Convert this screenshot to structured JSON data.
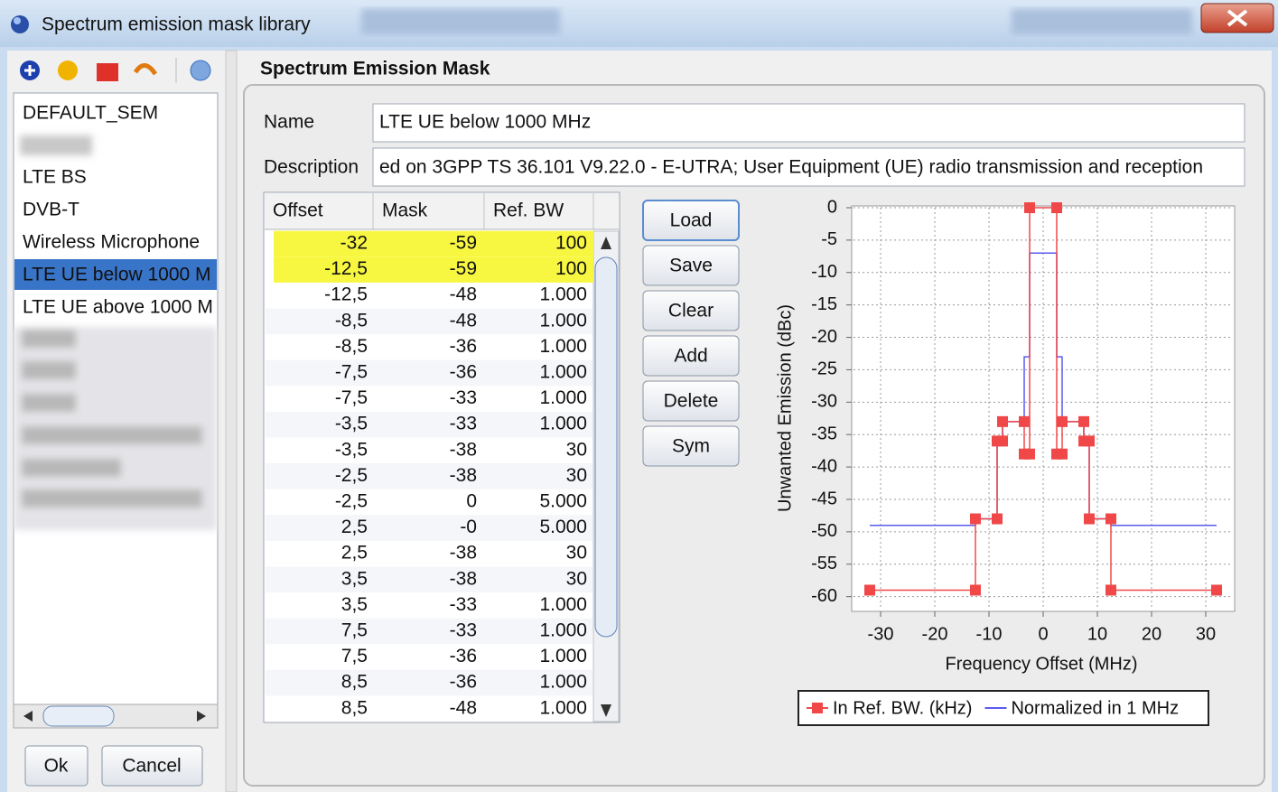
{
  "window": {
    "title": "Spectrum emission mask library"
  },
  "library": {
    "items": [
      "DEFAULT_SEM",
      "LTE BS",
      "DVB-T",
      "Wireless Microphone",
      "LTE UE below 1000 M",
      "LTE UE above 1000 M"
    ],
    "selected": 4
  },
  "buttons": {
    "ok": "Ok",
    "cancel": "Cancel"
  },
  "panel": {
    "title": "Spectrum Emission Mask",
    "name_label": "Name",
    "name": "LTE UE below 1000 MHz",
    "description_label": "Description",
    "description": "ed on 3GPP TS 36.101 V9.22.0 - E-UTRA; User Equipment (UE) radio transmission and reception"
  },
  "table": {
    "columns": [
      "Offset",
      "Mask",
      "Ref. BW"
    ],
    "rows": [
      [
        "-32",
        "-59",
        "100"
      ],
      [
        "-12,5",
        "-59",
        "100"
      ],
      [
        "-12,5",
        "-48",
        "1.000"
      ],
      [
        "-8,5",
        "-48",
        "1.000"
      ],
      [
        "-8,5",
        "-36",
        "1.000"
      ],
      [
        "-7,5",
        "-36",
        "1.000"
      ],
      [
        "-7,5",
        "-33",
        "1.000"
      ],
      [
        "-3,5",
        "-33",
        "1.000"
      ],
      [
        "-3,5",
        "-38",
        "30"
      ],
      [
        "-2,5",
        "-38",
        "30"
      ],
      [
        "-2,5",
        "0",
        "5.000"
      ],
      [
        "2,5",
        "-0",
        "5.000"
      ],
      [
        "2,5",
        "-38",
        "30"
      ],
      [
        "3,5",
        "-38",
        "30"
      ],
      [
        "3,5",
        "-33",
        "1.000"
      ],
      [
        "7,5",
        "-33",
        "1.000"
      ],
      [
        "7,5",
        "-36",
        "1.000"
      ],
      [
        "8,5",
        "-36",
        "1.000"
      ],
      [
        "8,5",
        "-48",
        "1.000"
      ]
    ],
    "highlighted": [
      0,
      1
    ]
  },
  "actions": [
    "Load",
    "Save",
    "Clear",
    "Add",
    "Delete",
    "Sym"
  ],
  "chart_data": {
    "type": "line",
    "xlabel": "Frequency Offset (MHz)",
    "ylabel": "Unwanted Emission (dBc)",
    "xlim": [
      -35,
      35
    ],
    "xticks": [
      -30,
      -20,
      -10,
      0,
      10,
      20,
      30
    ],
    "ylim": [
      -62,
      0
    ],
    "yticks": [
      0,
      -5,
      -10,
      -15,
      -20,
      -25,
      -30,
      -35,
      -40,
      -45,
      -50,
      -55,
      -60
    ],
    "grid": true,
    "series": [
      {
        "name": "In Ref. BW. (kHz)",
        "color": "#f04848",
        "markers": true,
        "x": [
          -32,
          -12.5,
          -12.5,
          -8.5,
          -8.5,
          -7.5,
          -7.5,
          -3.5,
          -3.5,
          -2.5,
          -2.5,
          2.5,
          2.5,
          3.5,
          3.5,
          7.5,
          7.5,
          8.5,
          8.5,
          12.5,
          12.5,
          32
        ],
        "values": [
          -59,
          -59,
          -48,
          -48,
          -36,
          -36,
          -33,
          -33,
          -38,
          -38,
          0,
          0,
          -38,
          -38,
          -33,
          -33,
          -36,
          -36,
          -48,
          -48,
          -59,
          -59
        ]
      },
      {
        "name": "Normalized in 1 MHz",
        "color": "#5a5af0",
        "markers": false,
        "x": [
          -32,
          -12.5,
          -12.5,
          -8.5,
          -8.5,
          -7.5,
          -7.5,
          -3.5,
          -3.5,
          -2.5,
          -2.5,
          2.5,
          2.5,
          3.5,
          3.5,
          7.5,
          7.5,
          8.5,
          8.5,
          12.5,
          12.5,
          32
        ],
        "values": [
          -49,
          -49,
          -48,
          -48,
          -36,
          -36,
          -33,
          -33,
          -23,
          -23,
          -7,
          -7,
          -23,
          -23,
          -33,
          -33,
          -36,
          -36,
          -48,
          -48,
          -49,
          -49
        ]
      }
    ]
  }
}
